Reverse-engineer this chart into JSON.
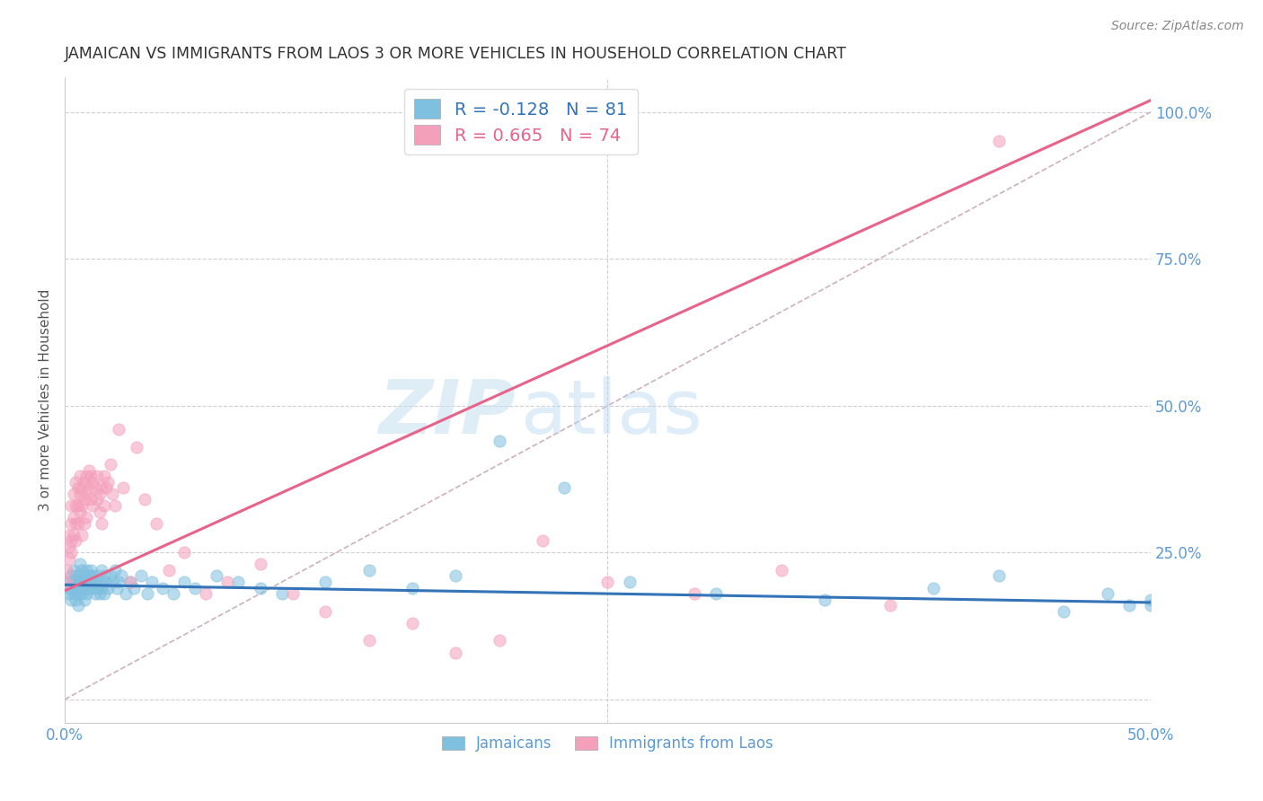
{
  "title": "JAMAICAN VS IMMIGRANTS FROM LAOS 3 OR MORE VEHICLES IN HOUSEHOLD CORRELATION CHART",
  "source": "Source: ZipAtlas.com",
  "ylabel": "3 or more Vehicles in Household",
  "legend_label1": "Jamaicans",
  "legend_label2": "Immigrants from Laos",
  "r1": "-0.128",
  "n1": "81",
  "r2": "0.665",
  "n2": "74",
  "color_blue": "#7fbfdf",
  "color_pink": "#f4a0bb",
  "color_blue_line": "#3373b8",
  "color_pink_line": "#e8638a",
  "color_diag_line": "#c8a8b8",
  "watermark_zip": "ZIP",
  "watermark_atlas": "atlas",
  "xlim": [
    0.0,
    0.5
  ],
  "ylim": [
    -0.04,
    1.06
  ],
  "blue_scatter_x": [
    0.001,
    0.002,
    0.002,
    0.003,
    0.003,
    0.003,
    0.004,
    0.004,
    0.004,
    0.005,
    0.005,
    0.005,
    0.006,
    0.006,
    0.006,
    0.007,
    0.007,
    0.007,
    0.008,
    0.008,
    0.008,
    0.009,
    0.009,
    0.009,
    0.01,
    0.01,
    0.01,
    0.011,
    0.011,
    0.012,
    0.012,
    0.013,
    0.013,
    0.014,
    0.014,
    0.015,
    0.015,
    0.016,
    0.016,
    0.017,
    0.017,
    0.018,
    0.018,
    0.019,
    0.02,
    0.021,
    0.022,
    0.023,
    0.024,
    0.025,
    0.026,
    0.028,
    0.03,
    0.032,
    0.035,
    0.038,
    0.04,
    0.045,
    0.05,
    0.055,
    0.06,
    0.07,
    0.08,
    0.09,
    0.1,
    0.12,
    0.14,
    0.16,
    0.18,
    0.2,
    0.23,
    0.26,
    0.3,
    0.35,
    0.4,
    0.43,
    0.46,
    0.48,
    0.49,
    0.5,
    0.5
  ],
  "blue_scatter_y": [
    0.19,
    0.18,
    0.2,
    0.17,
    0.19,
    0.21,
    0.18,
    0.2,
    0.22,
    0.17,
    0.19,
    0.21,
    0.18,
    0.2,
    0.16,
    0.19,
    0.21,
    0.23,
    0.18,
    0.2,
    0.22,
    0.19,
    0.21,
    0.17,
    0.2,
    0.22,
    0.18,
    0.21,
    0.19,
    0.2,
    0.22,
    0.19,
    0.21,
    0.18,
    0.2,
    0.19,
    0.21,
    0.18,
    0.2,
    0.22,
    0.19,
    0.21,
    0.18,
    0.2,
    0.19,
    0.21,
    0.2,
    0.22,
    0.19,
    0.2,
    0.21,
    0.18,
    0.2,
    0.19,
    0.21,
    0.18,
    0.2,
    0.19,
    0.18,
    0.2,
    0.19,
    0.21,
    0.2,
    0.19,
    0.18,
    0.2,
    0.22,
    0.19,
    0.21,
    0.44,
    0.36,
    0.2,
    0.18,
    0.17,
    0.19,
    0.21,
    0.15,
    0.18,
    0.16,
    0.17,
    0.16
  ],
  "pink_scatter_x": [
    0.001,
    0.001,
    0.002,
    0.002,
    0.002,
    0.003,
    0.003,
    0.003,
    0.003,
    0.004,
    0.004,
    0.004,
    0.005,
    0.005,
    0.005,
    0.005,
    0.006,
    0.006,
    0.006,
    0.007,
    0.007,
    0.007,
    0.008,
    0.008,
    0.008,
    0.009,
    0.009,
    0.009,
    0.01,
    0.01,
    0.01,
    0.011,
    0.011,
    0.012,
    0.012,
    0.013,
    0.013,
    0.014,
    0.015,
    0.015,
    0.016,
    0.016,
    0.017,
    0.017,
    0.018,
    0.018,
    0.019,
    0.02,
    0.021,
    0.022,
    0.023,
    0.025,
    0.027,
    0.03,
    0.033,
    0.037,
    0.042,
    0.048,
    0.055,
    0.065,
    0.075,
    0.09,
    0.105,
    0.12,
    0.14,
    0.16,
    0.18,
    0.2,
    0.22,
    0.25,
    0.29,
    0.33,
    0.38,
    0.43
  ],
  "pink_scatter_y": [
    0.2,
    0.22,
    0.24,
    0.26,
    0.28,
    0.25,
    0.27,
    0.3,
    0.33,
    0.28,
    0.31,
    0.35,
    0.27,
    0.3,
    0.33,
    0.37,
    0.3,
    0.33,
    0.36,
    0.32,
    0.35,
    0.38,
    0.33,
    0.36,
    0.28,
    0.34,
    0.37,
    0.3,
    0.35,
    0.38,
    0.31,
    0.36,
    0.39,
    0.34,
    0.38,
    0.33,
    0.37,
    0.36,
    0.34,
    0.38,
    0.35,
    0.32,
    0.36,
    0.3,
    0.38,
    0.33,
    0.36,
    0.37,
    0.4,
    0.35,
    0.33,
    0.46,
    0.36,
    0.2,
    0.43,
    0.34,
    0.3,
    0.22,
    0.25,
    0.18,
    0.2,
    0.23,
    0.18,
    0.15,
    0.1,
    0.13,
    0.08,
    0.1,
    0.27,
    0.2,
    0.18,
    0.22,
    0.16,
    0.95
  ]
}
